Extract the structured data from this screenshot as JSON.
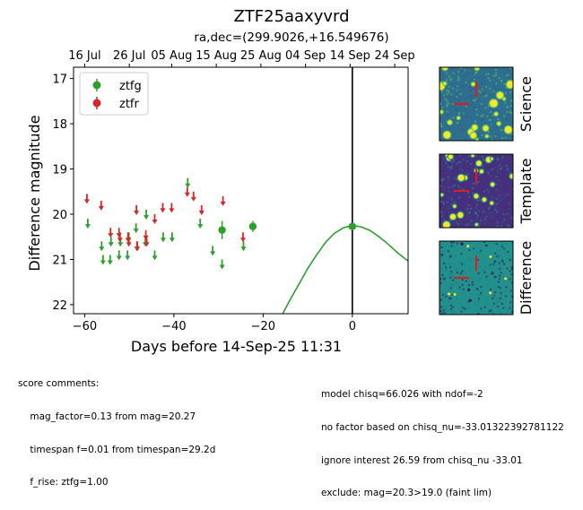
{
  "header": {
    "title": "ZTF25aaxyvrd",
    "subtitle": "ra,dec=(299.9026,+16.549676)"
  },
  "chart_data": {
    "type": "scatter",
    "xlabel": "Days before 14-Sep-25 11:31",
    "ylabel": "Difference magnitude",
    "xlim": [
      -62.5,
      12.5
    ],
    "ylim": [
      22.2,
      16.75
    ],
    "y_inverted": true,
    "grid": false,
    "legend_position": "top-left",
    "x_ticks": [
      -60,
      -40,
      -20,
      0
    ],
    "x_tick_labels": [
      "−60",
      "−40",
      "−20",
      "0"
    ],
    "y_ticks": [
      17,
      18,
      19,
      20,
      21,
      22
    ],
    "top_axis_ticks": [
      {
        "x": -60.0,
        "label": "16 Jul"
      },
      {
        "x": -50.0,
        "label": "26 Jul"
      },
      {
        "x": -40.5,
        "label": "05 Aug"
      },
      {
        "x": -30.5,
        "label": "15 Aug"
      },
      {
        "x": -20.5,
        "label": "25 Aug"
      },
      {
        "x": -10.5,
        "label": "04 Sep"
      },
      {
        "x": -0.5,
        "label": "14 Sep"
      },
      {
        "x": 9.5,
        "label": "24 Sep"
      }
    ],
    "marker_line_x": 0,
    "legend": [
      {
        "name": "ztfg",
        "color": "#2ca02c"
      },
      {
        "name": "ztfr",
        "color": "#d62728"
      }
    ],
    "series": [
      {
        "name": "ztfg",
        "color": "#2ca02c",
        "upper_limits": [
          {
            "x": -59.3,
            "y": 20.2
          },
          {
            "x": -56.2,
            "y": 20.7
          },
          {
            "x": -55.9,
            "y": 21.0
          },
          {
            "x": -54.3,
            "y": 21.0
          },
          {
            "x": -54.1,
            "y": 20.6
          },
          {
            "x": -52.3,
            "y": 20.9
          },
          {
            "x": -52.0,
            "y": 20.6
          },
          {
            "x": -50.4,
            "y": 20.9
          },
          {
            "x": -50.1,
            "y": 20.5
          },
          {
            "x": -48.5,
            "y": 20.3
          },
          {
            "x": -48.3,
            "y": 20.7
          },
          {
            "x": -46.4,
            "y": 20.6
          },
          {
            "x": -46.2,
            "y": 20.0
          },
          {
            "x": -44.3,
            "y": 20.9
          },
          {
            "x": -42.4,
            "y": 20.5
          },
          {
            "x": -40.4,
            "y": 20.5
          },
          {
            "x": -36.9,
            "y": 19.3
          },
          {
            "x": -34.1,
            "y": 20.2
          },
          {
            "x": -31.3,
            "y": 20.8
          },
          {
            "x": -29.2,
            "y": 21.1
          },
          {
            "x": -24.4,
            "y": 20.7
          }
        ],
        "detections": [
          {
            "x": -29.2,
            "y": 20.35,
            "err": 0.2
          },
          {
            "x": -22.3,
            "y": 20.27,
            "err": 0.12
          },
          {
            "x": 0.0,
            "y": 20.27,
            "err": 0.08
          }
        ]
      },
      {
        "name": "ztfr",
        "color": "#d62728",
        "upper_limits": [
          {
            "x": -59.5,
            "y": 19.65
          },
          {
            "x": -56.3,
            "y": 19.8
          },
          {
            "x": -54.2,
            "y": 20.4
          },
          {
            "x": -52.3,
            "y": 20.4
          },
          {
            "x": -52.1,
            "y": 20.5
          },
          {
            "x": -50.3,
            "y": 20.5
          },
          {
            "x": -50.1,
            "y": 20.6
          },
          {
            "x": -48.4,
            "y": 19.9
          },
          {
            "x": -48.2,
            "y": 20.7
          },
          {
            "x": -46.3,
            "y": 20.45
          },
          {
            "x": -46.1,
            "y": 20.6
          },
          {
            "x": -44.3,
            "y": 20.1
          },
          {
            "x": -42.5,
            "y": 19.85
          },
          {
            "x": -40.5,
            "y": 19.85
          },
          {
            "x": -37.0,
            "y": 19.5
          },
          {
            "x": -35.6,
            "y": 19.6
          },
          {
            "x": -33.8,
            "y": 19.9
          },
          {
            "x": -29.0,
            "y": 19.7
          },
          {
            "x": -24.5,
            "y": 20.5
          }
        ],
        "detections": []
      }
    ],
    "model_curve": {
      "color": "#2ca02c",
      "points": [
        [
          -15.6,
          22.2
        ],
        [
          -14.0,
          21.9
        ],
        [
          -12.0,
          21.55
        ],
        [
          -10.0,
          21.2
        ],
        [
          -8.0,
          20.9
        ],
        [
          -6.0,
          20.62
        ],
        [
          -4.0,
          20.42
        ],
        [
          -2.0,
          20.3
        ],
        [
          0.0,
          20.25
        ],
        [
          2.0,
          20.28
        ],
        [
          4.0,
          20.36
        ],
        [
          6.0,
          20.5
        ],
        [
          8.0,
          20.66
        ],
        [
          10.0,
          20.84
        ],
        [
          12.0,
          21.0
        ],
        [
          14.5,
          21.15
        ]
      ]
    }
  },
  "cutouts": [
    {
      "label": "Science",
      "colors": {
        "bg": "#2e6e8e",
        "alt": "#3b528b",
        "bright": "#fde725",
        "mid": "#5ec962"
      }
    },
    {
      "label": "Template",
      "colors": {
        "bg": "#46307e",
        "alt": "#3b528b",
        "bright": "#fde725",
        "mid": "#21918c"
      }
    },
    {
      "label": "Difference",
      "colors": {
        "bg": "#21918c",
        "alt": "#2a788e",
        "bright": "#fde725",
        "mid": "#440154"
      }
    }
  ],
  "comments": {
    "left_lines": [
      "score comments:",
      "    mag_factor=0.13 from mag=20.27",
      "    timespan f=0.01 from timespan=29.2d",
      "    f_rise: ztfg=1.00"
    ],
    "right_lines": [
      "model chisq=66.026 with ndof=-2",
      "no factor based on chisq_nu=-33.01322392781122",
      "ignore interest 26.59 from chisq_nu -33.01",
      "exclude: mag=20.3>19.0 (faint lim)"
    ]
  }
}
